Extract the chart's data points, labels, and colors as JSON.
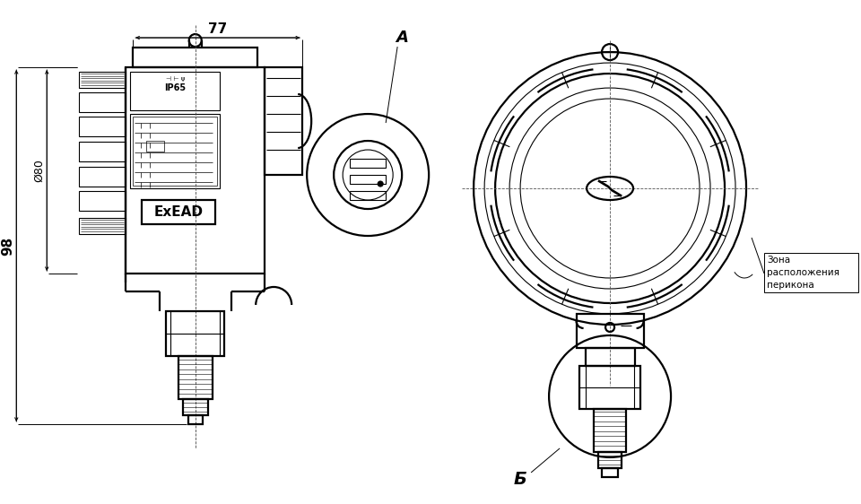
{
  "bg_color": "#ffffff",
  "line_color": "#000000",
  "text_color": "#000000",
  "dim_77_text": "77",
  "dim_98_text": "98",
  "dim_80_text": "Ø80",
  "label_A": "A",
  "label_B": "Б",
  "zone_line1": "Зона",
  "zone_line2": "расположения",
  "zone_line3": "перикона",
  "ip_text": "IP65",
  "ex_text": "ExEAD",
  "lw_main": 1.6,
  "lw_thin": 0.8,
  "lw_dim": 0.7,
  "lw_dash": 0.6
}
